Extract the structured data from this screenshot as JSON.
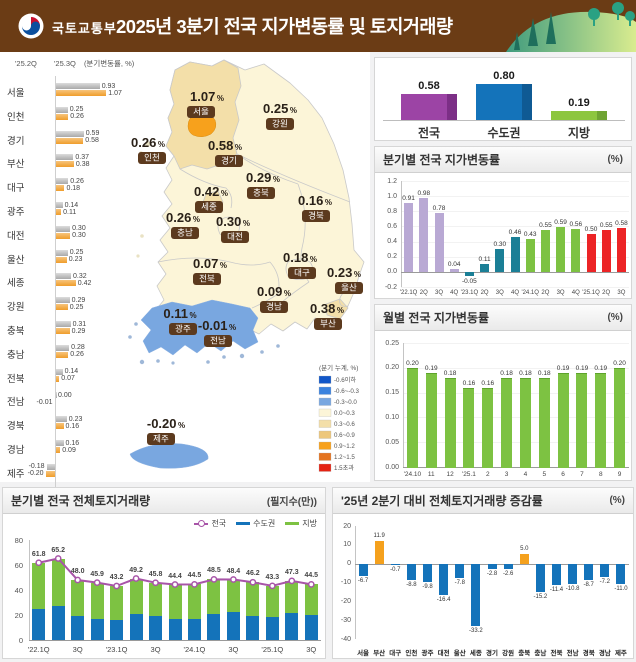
{
  "header": {
    "agency": "국토교통부",
    "title": "2025년 3분기 전국 지가변동률 및 토지거래량"
  },
  "map": {
    "note": "(분기 누계, %)",
    "unit": "%",
    "badge_color": "#5C3A1E",
    "regions": [
      {
        "name": "서울",
        "value": "1.07"
      },
      {
        "name": "강원",
        "value": "0.25"
      },
      {
        "name": "인천",
        "value": "0.26"
      },
      {
        "name": "경기",
        "value": "0.58"
      },
      {
        "name": "충북",
        "value": "0.29"
      },
      {
        "name": "세종",
        "value": "0.42"
      },
      {
        "name": "경북",
        "value": "0.16"
      },
      {
        "name": "충남",
        "value": "0.26"
      },
      {
        "name": "대전",
        "value": "0.30"
      },
      {
        "name": "대구",
        "value": "0.18"
      },
      {
        "name": "전북",
        "value": "0.07"
      },
      {
        "name": "울산",
        "value": "0.23"
      },
      {
        "name": "경남",
        "value": "0.09"
      },
      {
        "name": "부산",
        "value": "0.38"
      },
      {
        "name": "광주",
        "value": "0.11"
      },
      {
        "name": "전남",
        "value": "-0.01"
      },
      {
        "name": "제주",
        "value": "-0.20"
      }
    ],
    "legend": [
      {
        "range": "-0.6이하",
        "color": "#1257C8"
      },
      {
        "range": "-0.6~-0.3",
        "color": "#3C83DE"
      },
      {
        "range": "-0.3~0.0",
        "color": "#79A7E0"
      },
      {
        "range": "0.0~0.3",
        "color": "#FCF5D8"
      },
      {
        "range": "0.3~0.6",
        "color": "#F3DFA9"
      },
      {
        "range": "0.6~0.9",
        "color": "#EDC77C"
      },
      {
        "range": "0.9~1.2",
        "color": "#F7A11C"
      },
      {
        "range": "1.2~1.5",
        "color": "#E4731F"
      },
      {
        "range": "1.5초과",
        "color": "#E42313"
      }
    ]
  },
  "chart_data": [
    {
      "id": "region_bars",
      "type": "bar",
      "orientation": "horizontal",
      "note": "(분기변동률, %)",
      "legend": [
        "'25.2Q",
        "'25.3Q"
      ],
      "legend_colors": [
        "#b3b3b3",
        "#F0A236"
      ],
      "categories": [
        "서울",
        "인천",
        "경기",
        "부산",
        "대구",
        "광주",
        "대전",
        "울산",
        "세종",
        "강원",
        "충북",
        "충남",
        "전북",
        "전남",
        "경북",
        "경남",
        "제주"
      ],
      "series": [
        {
          "name": "'25.2Q",
          "values": [
            0.93,
            0.25,
            0.59,
            0.37,
            0.26,
            0.14,
            0.3,
            0.25,
            0.32,
            0.29,
            0.31,
            0.28,
            0.14,
            0.0,
            0.23,
            0.16,
            -0.18
          ]
        },
        {
          "name": "'25.3Q",
          "values": [
            1.07,
            0.26,
            0.58,
            0.38,
            0.18,
            0.11,
            0.3,
            0.23,
            0.42,
            0.25,
            0.29,
            0.26,
            0.07,
            -0.01,
            0.16,
            0.09,
            -0.2
          ]
        }
      ]
    },
    {
      "id": "summary",
      "type": "bar",
      "categories": [
        "전국",
        "수도권",
        "지방"
      ],
      "values": [
        0.58,
        0.8,
        0.19
      ],
      "colors": [
        "#9C44A5",
        "#1473BA",
        "#8DC63F"
      ],
      "side_colors": [
        "#7C2F86",
        "#0F5A94",
        "#6FA433"
      ]
    },
    {
      "id": "quarterly",
      "type": "bar",
      "title": "분기별 전국 지가변동률",
      "unit": "(%)",
      "categories": [
        "'22.1Q",
        "2Q",
        "3Q",
        "4Q",
        "'23.1Q",
        "2Q",
        "3Q",
        "4Q",
        "'24.1Q",
        "2Q",
        "3Q",
        "4Q",
        "'25.1Q",
        "2Q",
        "3Q"
      ],
      "values": [
        0.91,
        0.98,
        0.78,
        0.04,
        -0.05,
        0.11,
        0.3,
        0.46,
        0.43,
        0.55,
        0.59,
        0.56,
        0.5,
        0.55,
        0.58
      ],
      "ylim": [
        -0.2,
        1.2
      ],
      "yticks": [
        1.2,
        1.0,
        0.8,
        0.6,
        0.4,
        0.2,
        0.0,
        -0.2
      ],
      "year_groups": [
        {
          "label": "'22",
          "count": 4,
          "color": "#B9A9D4"
        },
        {
          "label": "'23",
          "count": 4,
          "color": "#1B7F96"
        },
        {
          "label": "'24",
          "count": 4,
          "color": "#7DC242"
        },
        {
          "label": "'25",
          "count": 3,
          "color": "#EC2426"
        }
      ]
    },
    {
      "id": "monthly",
      "type": "bar",
      "title": "월별 전국 지가변동률",
      "unit": "(%)",
      "categories": [
        "'24.10",
        "11",
        "12",
        "'25.1",
        "2",
        "3",
        "4",
        "5",
        "6",
        "7",
        "8",
        "9"
      ],
      "values": [
        0.2,
        0.19,
        0.18,
        0.16,
        0.16,
        0.18,
        0.18,
        0.18,
        0.19,
        0.19,
        0.19,
        0.2
      ],
      "ylim": [
        0,
        0.25
      ],
      "yticks": [
        0.25,
        0.2,
        0.15,
        0.1,
        0.05,
        0.0
      ],
      "color": "#7DC242"
    },
    {
      "id": "volume",
      "type": "stacked-bar-line",
      "title": "분기별 전국 전체토지거래량",
      "unit": "(필지수(만))",
      "categories": [
        "'22.1Q",
        "2Q",
        "3Q",
        "4Q",
        "'23.1Q",
        "2Q",
        "3Q",
        "4Q",
        "'24.1Q",
        "2Q",
        "3Q",
        "4Q",
        "'25.1Q",
        "2Q",
        "3Q"
      ],
      "x_labels_shown": [
        "'22.1Q",
        "3Q",
        "'23.1Q",
        "3Q",
        "'24.1Q",
        "3Q",
        "'25.1Q",
        "3Q"
      ],
      "ylim": [
        0,
        80
      ],
      "yticks": [
        80,
        60,
        40,
        20,
        0
      ],
      "series": [
        {
          "name": "전국",
          "type": "line",
          "color": "#A855A8",
          "values": [
            61.8,
            65.2,
            48.0,
            45.9,
            43.2,
            49.2,
            45.8,
            44.4,
            44.5,
            48.5,
            48.4,
            46.2,
            43.3,
            47.3,
            44.5
          ]
        },
        {
          "name": "수도권",
          "type": "bar",
          "color": "#1473BA",
          "values": [
            25.0,
            27.4,
            19.5,
            17.1,
            16.3,
            20.7,
            19.0,
            16.8,
            16.8,
            20.7,
            22.4,
            19.5,
            18.8,
            21.5,
            20.0
          ]
        },
        {
          "name": "지방",
          "type": "bar",
          "color": "#7DC242",
          "values": [
            36.8,
            37.8,
            28.5,
            28.8,
            26.9,
            28.5,
            26.8,
            27.6,
            27.7,
            27.8,
            26.0,
            26.7,
            24.5,
            25.8,
            24.5
          ]
        }
      ]
    },
    {
      "id": "change",
      "type": "bar",
      "title": "'25년 2분기 대비 전체토지거래량 증감률",
      "unit": "(%)",
      "categories": [
        "서울",
        "부산",
        "대구",
        "인천",
        "광주",
        "대전",
        "울산",
        "세종",
        "경기",
        "강원",
        "충북",
        "충남",
        "전북",
        "전남",
        "경북",
        "경남",
        "제주"
      ],
      "values": [
        -6.7,
        11.9,
        -0.7,
        -8.8,
        -9.8,
        -16.4,
        -7.8,
        -33.2,
        -2.8,
        -2.6,
        5.0,
        -15.2,
        -11.4,
        -10.8,
        -8.7,
        -7.2,
        -11.0
      ],
      "ylim": [
        -40,
        20
      ],
      "yticks": [
        20,
        10,
        0,
        -10,
        -20,
        -30,
        -40
      ],
      "pos_color": "#F5A11D",
      "neg_color": "#1473BA"
    }
  ]
}
